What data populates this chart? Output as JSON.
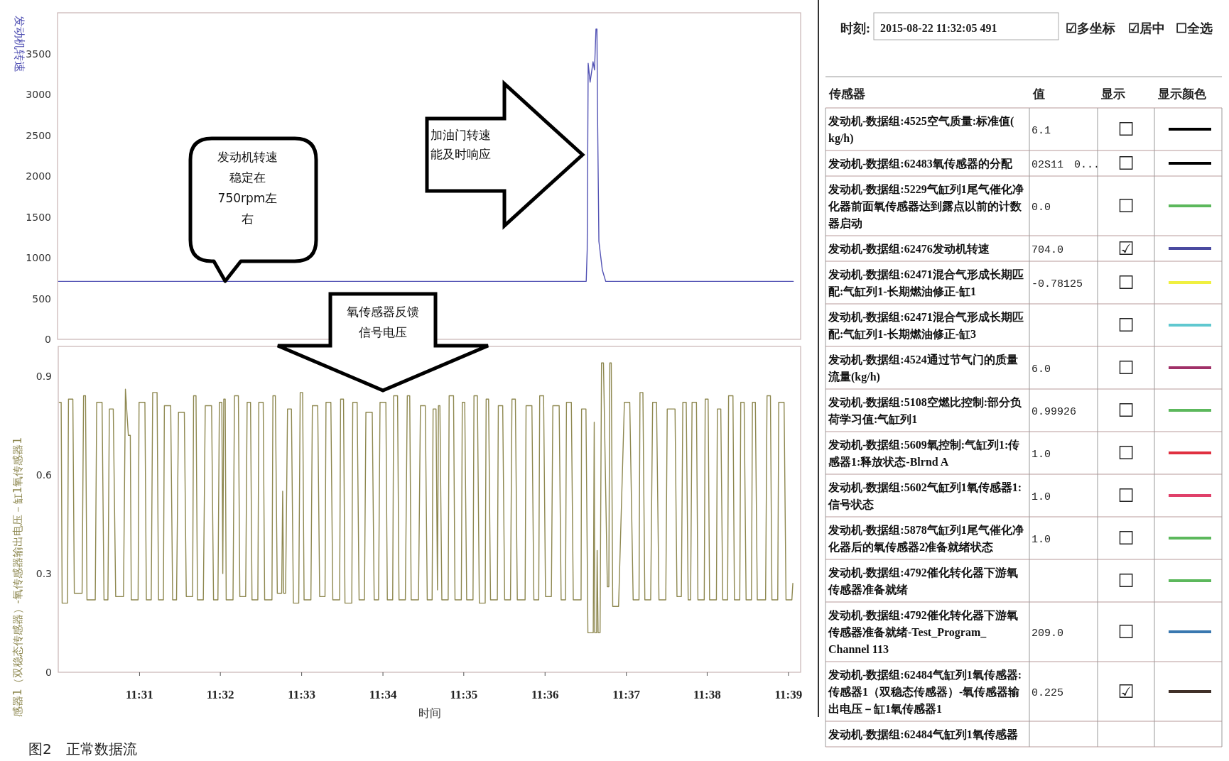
{
  "chart_data": [
    {
      "type": "line",
      "ylabel": "发动机转速",
      "xlim": [
        11.5,
        11.6525
      ],
      "ylim": [
        0,
        4000
      ],
      "yticks": [
        0,
        500,
        1000,
        1500,
        2000,
        2500,
        3000,
        3500
      ],
      "tick_labels": "y",
      "series": [
        {
          "color": "#5252b4",
          "x": [
            11.5002,
            11.6085,
            11.6087,
            11.6089,
            11.6093,
            11.6099,
            11.6102,
            11.6105,
            11.6107,
            11.6108,
            11.6111,
            11.6118,
            11.6125,
            11.651
          ],
          "values": [
            710,
            710,
            1100,
            3380,
            3150,
            3400,
            3300,
            3800,
            3800,
            2900,
            1200,
            850,
            710,
            710
          ]
        }
      ],
      "annotations": [
        "发动机转速稳定在750rpm左右",
        "加油门转速能及时响应"
      ]
    },
    {
      "type": "line",
      "xlabel": "时间",
      "ylabel": "感器1（双稳态传感器）-氧传感器输出电压－缸1氧传感器1",
      "xlim": [
        11.5,
        11.6525
      ],
      "ylim": [
        0,
        0.99
      ],
      "xticks": [
        {
          "value": 11.5167,
          "label": "11:31"
        },
        {
          "value": 11.5333,
          "label": "11:32"
        },
        {
          "value": 11.55,
          "label": "11:33"
        },
        {
          "value": 11.5667,
          "label": "11:34"
        },
        {
          "value": 11.5833,
          "label": "11:35"
        },
        {
          "value": 11.6,
          "label": "11:36"
        },
        {
          "value": 11.6167,
          "label": "11:37"
        },
        {
          "value": 11.6333,
          "label": "11:38"
        },
        {
          "value": 11.65,
          "label": "11:39"
        }
      ],
      "yticks": [
        0,
        0.3,
        0.6,
        0.9
      ],
      "series": [
        {
          "color": "#8e8850",
          "x": [
            11.5002,
            11.5006,
            11.5008,
            11.5019,
            11.5021,
            11.503,
            11.5033,
            11.5049,
            11.5052,
            11.5056,
            11.5059,
            11.5076,
            11.5079,
            11.509,
            11.5094,
            11.5102,
            11.5105,
            11.5113,
            11.5118,
            11.5134,
            11.5138,
            11.5144,
            11.5148,
            11.515,
            11.5164,
            11.5166,
            11.5178,
            11.5181,
            11.5191,
            11.5194,
            11.5203,
            11.5206,
            11.5216,
            11.5218,
            11.5231,
            11.5235,
            11.5243,
            11.5247,
            11.5259,
            11.5263,
            11.5276,
            11.5278,
            11.5283,
            11.5286,
            11.5298,
            11.5302,
            11.5315,
            11.5319,
            11.5328,
            11.5331,
            11.5336,
            11.5338,
            11.534,
            11.5343,
            11.5345,
            11.5359,
            11.5362,
            11.537,
            11.5373,
            11.5385,
            11.5388,
            11.5395,
            11.5398,
            11.541,
            11.5412,
            11.5421,
            11.5424,
            11.5439,
            11.5441,
            11.5446,
            11.545,
            11.5459,
            11.5461,
            11.5463,
            11.5467,
            11.5471,
            11.5479,
            11.5483,
            11.5494,
            11.5497,
            11.5502,
            11.5505,
            11.5519,
            11.5522,
            11.5533,
            11.5537,
            11.5548,
            11.555,
            11.556,
            11.5564,
            11.5578,
            11.558,
            11.5586,
            11.5589,
            11.5603,
            11.5605,
            11.5614,
            11.5618,
            11.5629,
            11.5632,
            11.5645,
            11.5649,
            11.5658,
            11.5661,
            11.5673,
            11.5676,
            11.5687,
            11.5689,
            11.5697,
            11.57,
            11.5713,
            11.5717,
            11.5722,
            11.5725,
            11.574,
            11.5744,
            11.5754,
            11.5758,
            11.5768,
            11.577,
            11.5776,
            11.5779,
            11.5781,
            11.5784,
            11.5788,
            11.5801,
            11.5803,
            11.5812,
            11.5815,
            11.5828,
            11.583,
            11.5835,
            11.5839,
            11.5852,
            11.5854,
            11.5861,
            11.5865,
            11.5877,
            11.5879,
            11.5884,
            11.5888,
            11.5902,
            11.5904,
            11.5913,
            11.5917,
            11.5929,
            11.5932,
            11.5939,
            11.5943,
            11.5959,
            11.5961,
            11.5973,
            11.5977,
            11.5987,
            11.5989,
            11.5997,
            11.6001,
            11.6013,
            11.6016,
            11.6029,
            11.6033,
            11.6042,
            11.6044,
            11.6054,
            11.6058,
            11.6074,
            11.6075,
            11.6084,
            11.6088,
            11.6099,
            11.6101,
            11.6102,
            11.6106,
            11.6107,
            11.6109,
            11.6113,
            11.6116,
            11.612,
            11.6128,
            11.6131,
            11.6133,
            11.6136,
            11.6139,
            11.6151,
            11.6163,
            11.6174,
            11.6181,
            11.6193,
            11.6195,
            11.6201,
            11.6205,
            11.6217,
            11.6221,
            11.6229,
            11.6234,
            11.6248,
            11.6251,
            11.6267,
            11.6271,
            11.628,
            11.6283,
            11.629,
            11.6294,
            11.6299,
            11.6302,
            11.6311,
            11.6314,
            11.6327,
            11.6329,
            11.6335,
            11.6338,
            11.6352,
            11.6354,
            11.6361,
            11.6365,
            11.6375,
            11.6377,
            11.6386,
            11.6389,
            11.64,
            11.6402,
            11.6409,
            11.6413,
            11.6424,
            11.6426,
            11.6432,
            11.6436,
            11.6453,
            11.6456,
            11.6463,
            11.6466,
            11.6478,
            11.648,
            11.6491,
            11.6495,
            11.6507,
            11.6509
          ],
          "values": [
            0.82,
            0.82,
            0.21,
            0.21,
            0.83,
            0.83,
            0.24,
            0.24,
            0.84,
            0.84,
            0.22,
            0.22,
            0.82,
            0.82,
            0.22,
            0.22,
            0.8,
            0.8,
            0.23,
            0.23,
            0.86,
            0.72,
            0.72,
            0.22,
            0.22,
            0.82,
            0.82,
            0.22,
            0.22,
            0.85,
            0.85,
            0.22,
            0.22,
            0.81,
            0.81,
            0.22,
            0.22,
            0.79,
            0.79,
            0.23,
            0.23,
            0.84,
            0.84,
            0.22,
            0.22,
            0.81,
            0.81,
            0.22,
            0.22,
            0.82,
            0.82,
            0.3,
            0.83,
            0.83,
            0.22,
            0.22,
            0.84,
            0.84,
            0.23,
            0.23,
            0.82,
            0.82,
            0.22,
            0.22,
            0.82,
            0.82,
            0.22,
            0.22,
            0.84,
            0.84,
            0.24,
            0.24,
            0.55,
            0.24,
            0.24,
            0.8,
            0.8,
            0.21,
            0.21,
            0.85,
            0.85,
            0.22,
            0.22,
            0.81,
            0.81,
            0.23,
            0.23,
            0.82,
            0.82,
            0.22,
            0.22,
            0.83,
            0.83,
            0.21,
            0.21,
            0.82,
            0.82,
            0.22,
            0.22,
            0.79,
            0.79,
            0.22,
            0.22,
            0.82,
            0.82,
            0.22,
            0.22,
            0.84,
            0.84,
            0.22,
            0.22,
            0.84,
            0.84,
            0.22,
            0.22,
            0.81,
            0.81,
            0.22,
            0.22,
            0.8,
            0.8,
            0.25,
            0.81,
            0.81,
            0.22,
            0.22,
            0.84,
            0.84,
            0.22,
            0.22,
            0.82,
            0.82,
            0.22,
            0.22,
            0.84,
            0.84,
            0.21,
            0.21,
            0.83,
            0.83,
            0.22,
            0.22,
            0.81,
            0.81,
            0.22,
            0.22,
            0.83,
            0.83,
            0.22,
            0.22,
            0.81,
            0.81,
            0.22,
            0.22,
            0.84,
            0.84,
            0.23,
            0.23,
            0.81,
            0.81,
            0.22,
            0.22,
            0.82,
            0.82,
            0.22,
            0.22,
            0.8,
            0.8,
            0.12,
            0.12,
            0.76,
            0.12,
            0.12,
            0.37,
            0.12,
            0.12,
            0.94,
            0.94,
            0.26,
            0.26,
            0.94,
            0.94,
            0.2,
            0.2,
            0.82,
            0.82,
            0.22,
            0.22,
            0.85,
            0.85,
            0.22,
            0.22,
            0.82,
            0.82,
            0.22,
            0.22,
            0.8,
            0.8,
            0.23,
            0.23,
            0.82,
            0.82,
            0.22,
            0.22,
            0.82,
            0.82,
            0.22,
            0.22,
            0.83,
            0.83,
            0.22,
            0.22,
            0.8,
            0.8,
            0.22,
            0.22,
            0.84,
            0.84,
            0.22,
            0.22,
            0.82,
            0.82,
            0.22,
            0.22,
            0.82,
            0.82,
            0.22,
            0.22,
            0.84,
            0.84,
            0.22,
            0.22,
            0.82,
            0.82,
            0.22,
            0.22,
            0.27
          ]
        }
      ],
      "annotations": [
        "氧传感器反馈信号电压",
        "图2　正常数据流"
      ]
    },
    {
      "type": "other",
      "annotations": [
        "时刻:",
        "2015-08-22 11:32:05 491",
        "☑多坐标",
        "☑居中",
        "☐全选"
      ],
      "categories": [
        "传感器",
        "值",
        "显示",
        "显示颜色"
      ],
      "y_categories": [
        "发动机-数据组:4525空气质量:标准值(kg/h)",
        "发动机-数据组:62483氧传感器的分配",
        "发动机-数据组:5229气缸列1尾气催化净化器前面氧传感器达到露点以前的计数器启动",
        "发动机-数据组:62476发动机转速",
        "发动机-数据组:62471混合气形成长期匹配:气缸列1-长期燃油修正-缸1",
        "发动机-数据组:62471混合气形成长期匹配:气缸列1-长期燃油修正-缸3",
        "发动机-数据组:4524通过节气门的质量流量(kg/h)",
        "发动机-数据组:5108空燃比控制:部分负荷学习值:气缸列1",
        "发动机-数据组:5609氧控制:气缸列1:传感器1:释放状态-Blrnd A",
        "发动机-数据组:5602气缸列1氧传感器1:信号状态",
        "发动机-数据组:5878气缸列1尾气催化净化器后的氧传感器2准备就绪状态",
        "发动机-数据组:4792催化转化器下游氧传感器准备就绪",
        "发动机-数据组:4792催化转化器下游氧传感器准备就绪-Test_Program_Channel 113",
        "发动机-数据组:62484气缸列1氧传感器:传感器1（双稳态传感器）-氧传感器输出电压－缸1氧传感器1",
        "发动机-数据组:62484气缸列1氧传感器"
      ],
      "cell_labels": [
        [
          "6.1",
          "☐"
        ],
        [
          "02S11　0...",
          "☐"
        ],
        [
          "0.0",
          "☐"
        ],
        [
          "704.0",
          "☑"
        ],
        [
          "-0.78125",
          "☐"
        ],
        [
          null,
          "☐"
        ],
        [
          "6.0",
          "☐"
        ],
        [
          "0.99926",
          "☐"
        ],
        [
          "1.0",
          "☐"
        ],
        [
          "1.0",
          "☐"
        ],
        [
          "1.0",
          "☐"
        ],
        [
          null,
          "☐"
        ],
        [
          "209.0",
          "☐"
        ],
        [
          "0.225",
          "☑"
        ],
        [
          null,
          null
        ]
      ],
      "colors": [
        "#000000",
        "#000000",
        "#5cb85c",
        "#4a4aa0",
        "#f0f040",
        "#60c8d0",
        "#a03068",
        "#5cb85c",
        "#e03040",
        "#e0406a",
        "#5cb85c",
        "#5cb85c",
        "#3a78b0",
        "#403028",
        null
      ]
    }
  ]
}
